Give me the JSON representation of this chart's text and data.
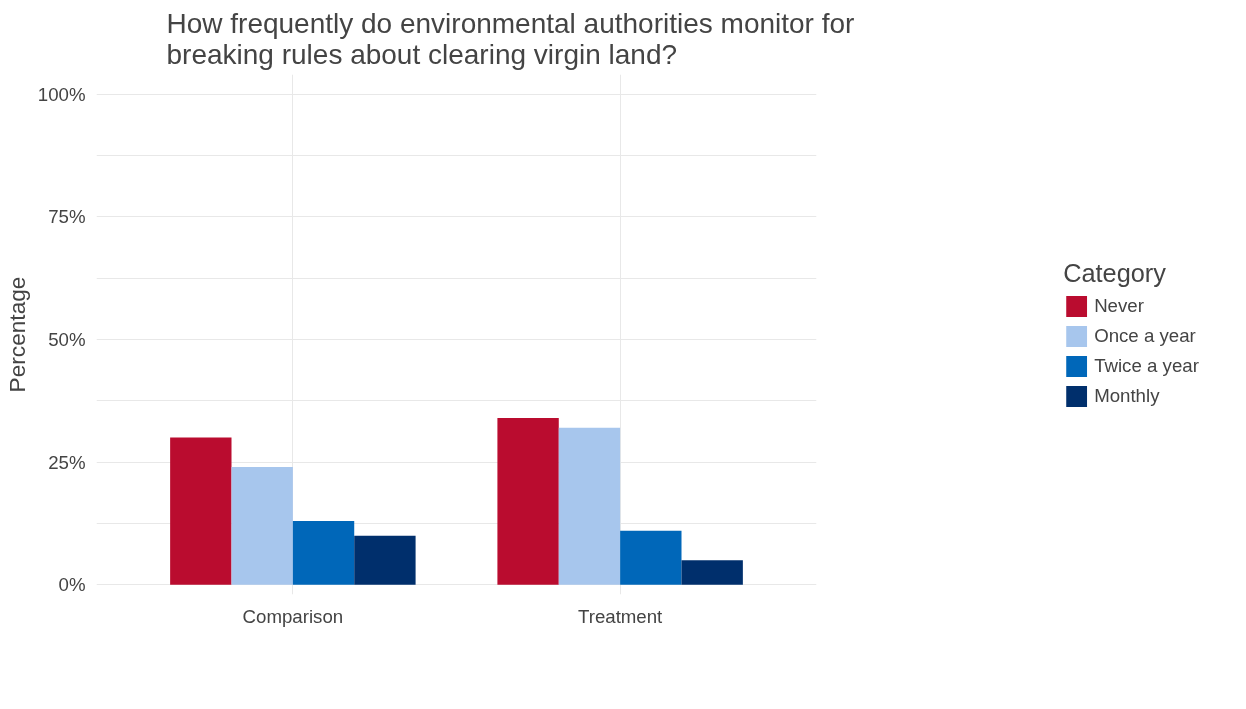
{
  "chart_data": {
    "type": "bar",
    "title": "How frequently do environmental authorities monitor for breaking rules about clearing virgin land?",
    "ylabel": "Percentage",
    "legend_title": "Category",
    "categories": [
      "Comparison",
      "Treatment"
    ],
    "series": [
      {
        "name": "Never",
        "color": "#ba0c2f",
        "values": [
          30,
          34
        ]
      },
      {
        "name": "Once a year",
        "color": "#a7c6ed",
        "values": [
          24,
          32
        ]
      },
      {
        "name": "Twice a year",
        "color": "#0067b9",
        "values": [
          13,
          11
        ]
      },
      {
        "name": "Monthly",
        "color": "#002f6c",
        "values": [
          10,
          5
        ]
      }
    ],
    "ylim": [
      -2,
      104
    ],
    "yticks": [
      {
        "value": 0,
        "label": "0%"
      },
      {
        "value": 12.5,
        "label": null
      },
      {
        "value": 25,
        "label": "25%"
      },
      {
        "value": 37.5,
        "label": null
      },
      {
        "value": 50,
        "label": "50%"
      },
      {
        "value": 62.5,
        "label": null
      },
      {
        "value": 75,
        "label": "75%"
      },
      {
        "value": 87.5,
        "label": null
      },
      {
        "value": 100,
        "label": "100%"
      }
    ],
    "grid": true,
    "legend": "right"
  }
}
